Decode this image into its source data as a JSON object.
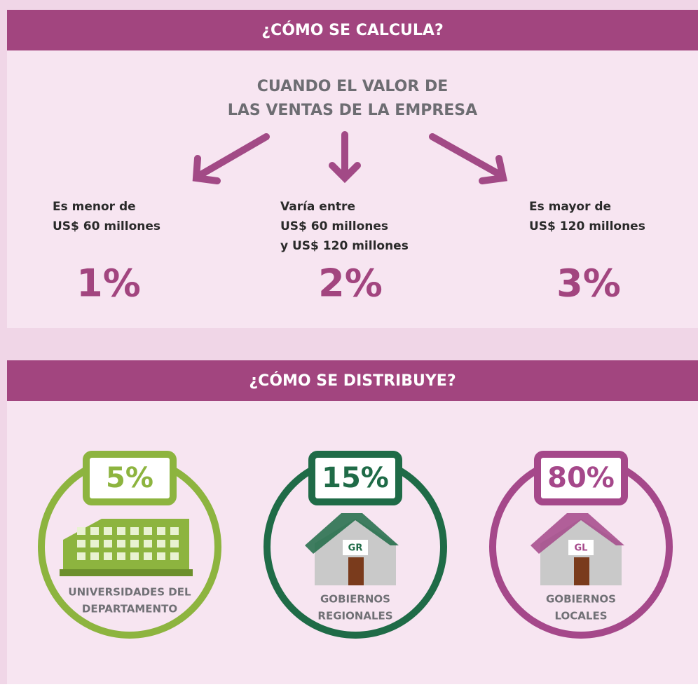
{
  "calc": {
    "title": "¿CÓMO SE CALCULA?",
    "intro": [
      "CUANDO EL VALOR DE",
      "LAS VENTAS DE LA EMPRESA"
    ],
    "cases": [
      {
        "lines": [
          "Es menor de",
          "US$ 60 millones"
        ],
        "rate": "1%"
      },
      {
        "lines": [
          "Varía entre",
          "US$ 60 millones",
          "y US$ 120 millones"
        ],
        "rate": "2%"
      },
      {
        "lines": [
          "Es mayor de",
          "US$ 120 millones"
        ],
        "rate": "3%"
      }
    ]
  },
  "dist": {
    "title": "¿CÓMO SE DISTRIBUYE?",
    "items": [
      {
        "share": "5%",
        "label": [
          "UNIVERSIDADES DEL",
          "DEPARTAMENTO"
        ],
        "color": "#8db43f"
      },
      {
        "share": "15%",
        "badge": "GR",
        "label": [
          "GOBIERNOS",
          "REGIONALES"
        ],
        "color": "#1f6b47"
      },
      {
        "share": "80%",
        "badge": "GL",
        "label": [
          "GOBIERNOS",
          "LOCALES"
        ],
        "color": "#a5488a"
      }
    ]
  }
}
